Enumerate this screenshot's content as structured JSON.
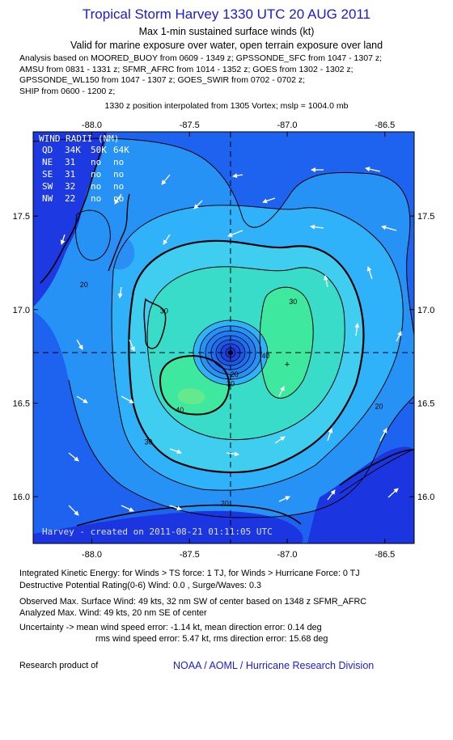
{
  "header": {
    "title": "Tropical Storm Harvey 1330 UTC 20 AUG 2011",
    "subtitle1": "Max 1-min sustained surface winds (kt)",
    "subtitle2": "Valid for marine exposure over water, open terrain exposure over land",
    "analysis_lines": [
      "Analysis based on MOORED_BUOY from 0609 - 1349 z; GPSSONDE_SFC from 1047 - 1307 z;",
      "AMSU from 0831 - 1331 z; SFMR_AFRC from 1014 - 1352 z; GOES from 1302 - 1302 z;",
      "GPSSONDE_WL150 from 1047 - 1307 z; GOES_SWIR from 0702 - 0702 z;",
      "SHIP from 0600 - 1200 z;"
    ],
    "position_line": "1330 z position interpolated from 1305 Vortex; mslp = 1004.0 mb"
  },
  "chart_data": {
    "type": "contour",
    "map": "Gulf of Honduras / Yucatan coast wind field",
    "xlim": [
      -88.3,
      -86.35
    ],
    "ylim": [
      15.75,
      17.95
    ],
    "x_ticks": [
      -88.0,
      -87.5,
      -87.0,
      -86.5
    ],
    "x_tick_labels": [
      "-88.0",
      "-87.5",
      "-87.0",
      "-86.5"
    ],
    "y_ticks": [
      16.0,
      16.5,
      17.0,
      17.5
    ],
    "y_tick_labels": [
      "16.0",
      "16.5",
      "17.0",
      "17.5"
    ],
    "center": {
      "lon": -87.29,
      "lat": 16.77
    },
    "max_wind_marker": {
      "lon": -87.0,
      "lat": 16.71
    },
    "contour_labels": [
      {
        "text": "20",
        "lon": -88.04,
        "lat": 17.12
      },
      {
        "text": "30",
        "lon": -87.63,
        "lat": 16.98
      },
      {
        "text": "30",
        "lon": -86.97,
        "lat": 17.03
      },
      {
        "text": "40",
        "lon": -87.11,
        "lat": 16.74
      },
      {
        "text": "20",
        "lon": -87.27,
        "lat": 16.64
      },
      {
        "text": "30",
        "lon": -87.29,
        "lat": 16.59
      },
      {
        "text": "40",
        "lon": -87.55,
        "lat": 16.45
      },
      {
        "text": "30",
        "lon": -87.71,
        "lat": 16.28
      },
      {
        "text": "20",
        "lon": -86.53,
        "lat": 16.47
      },
      {
        "text": "20",
        "lon": -87.32,
        "lat": 15.95
      }
    ],
    "levels": [
      10,
      20,
      25,
      30,
      35,
      40,
      45
    ],
    "colors": {
      "background": "#1e62f0",
      "level10": "#1c6ff2",
      "level20": "#2792f6",
      "level25": "#2fb2fa",
      "level30": "#3fcdf0",
      "level35": "#38dcc8",
      "level40": "#3ee89f",
      "level45": "#66e88c",
      "core": "#1b35e0"
    },
    "wind_radii_table": {
      "title": "WIND RADII (NM)",
      "header": [
        "QD",
        "34K",
        "50K",
        "64K"
      ],
      "rows": [
        [
          "NE",
          "31",
          "no",
          "no"
        ],
        [
          "SE",
          "31",
          "no",
          "no"
        ],
        [
          "SW",
          "32",
          "no",
          "no"
        ],
        [
          "NW",
          "22",
          "no",
          "no"
        ]
      ]
    },
    "credit": "Harvey - created on 2011-08-21 01:11:05 UTC"
  },
  "footer": {
    "ike": "Integrated Kinetic Energy:  for Winds > TS force: 1 TJ,  for Winds > Hurricane Force: 0 TJ",
    "dpr": "Destructive Potential Rating(0-6)   Wind: 0.0 , Surge/Waves: 0.3",
    "obs_max": "Observed Max. Surface Wind: 49 kts, 32 nm SW of center based on 1348 z SFMR_AFRC",
    "analyzed_max": "Analyzed Max. Wind: 49 kts, 20 nm SE of center",
    "uncertainty1": "Uncertainty -> mean wind speed error:  -1.14 kt,   mean direction error: 0.14 deg",
    "uncertainty2": "rms wind speed error: 5.47 kt,   rms direction error: 15.68 deg",
    "research": "Research product of",
    "link": "NOAA / AOML / Hurricane Research Division"
  }
}
